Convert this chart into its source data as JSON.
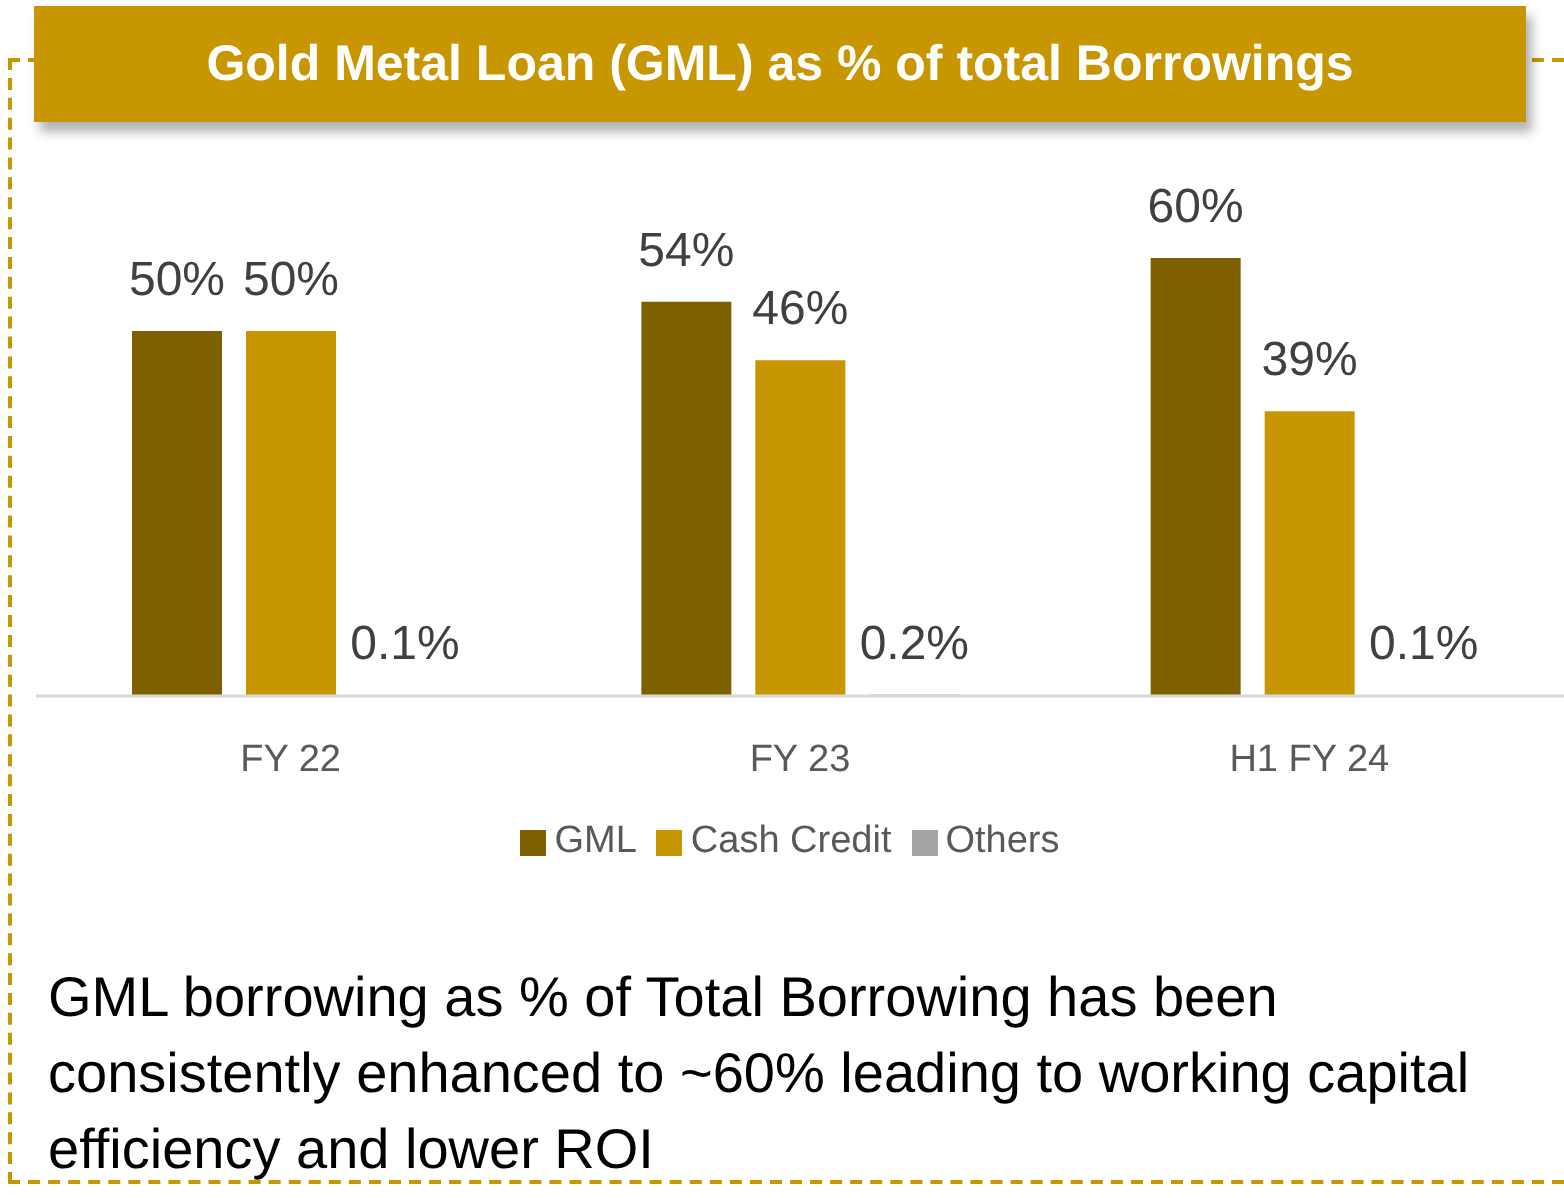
{
  "chart_data": {
    "type": "bar",
    "title": "Gold Metal Loan (GML) as % of total Borrowings",
    "categories": [
      "FY 22",
      "FY 23",
      "H1 FY 24"
    ],
    "series": [
      {
        "name": "GML",
        "color": "#7f6000",
        "values": [
          50,
          54,
          60
        ],
        "value_labels": [
          "50%",
          "54%",
          "60%"
        ]
      },
      {
        "name": "Cash Credit",
        "color": "#c89600",
        "values": [
          50,
          46,
          39
        ],
        "value_labels": [
          "50%",
          "46%",
          "39%"
        ]
      },
      {
        "name": "Others",
        "color": "#a5a5a5",
        "values": [
          0.1,
          0.2,
          0.1
        ],
        "value_labels": [
          "0.1%",
          "0.2%",
          "0.1%"
        ]
      }
    ],
    "legend": "bottom",
    "tick_labels": "x",
    "annotations": [
      "GML borrowing as % of Total Borrowing has been consistently enhanced to ~60% leading to working capital efficiency and lower ROI"
    ]
  }
}
